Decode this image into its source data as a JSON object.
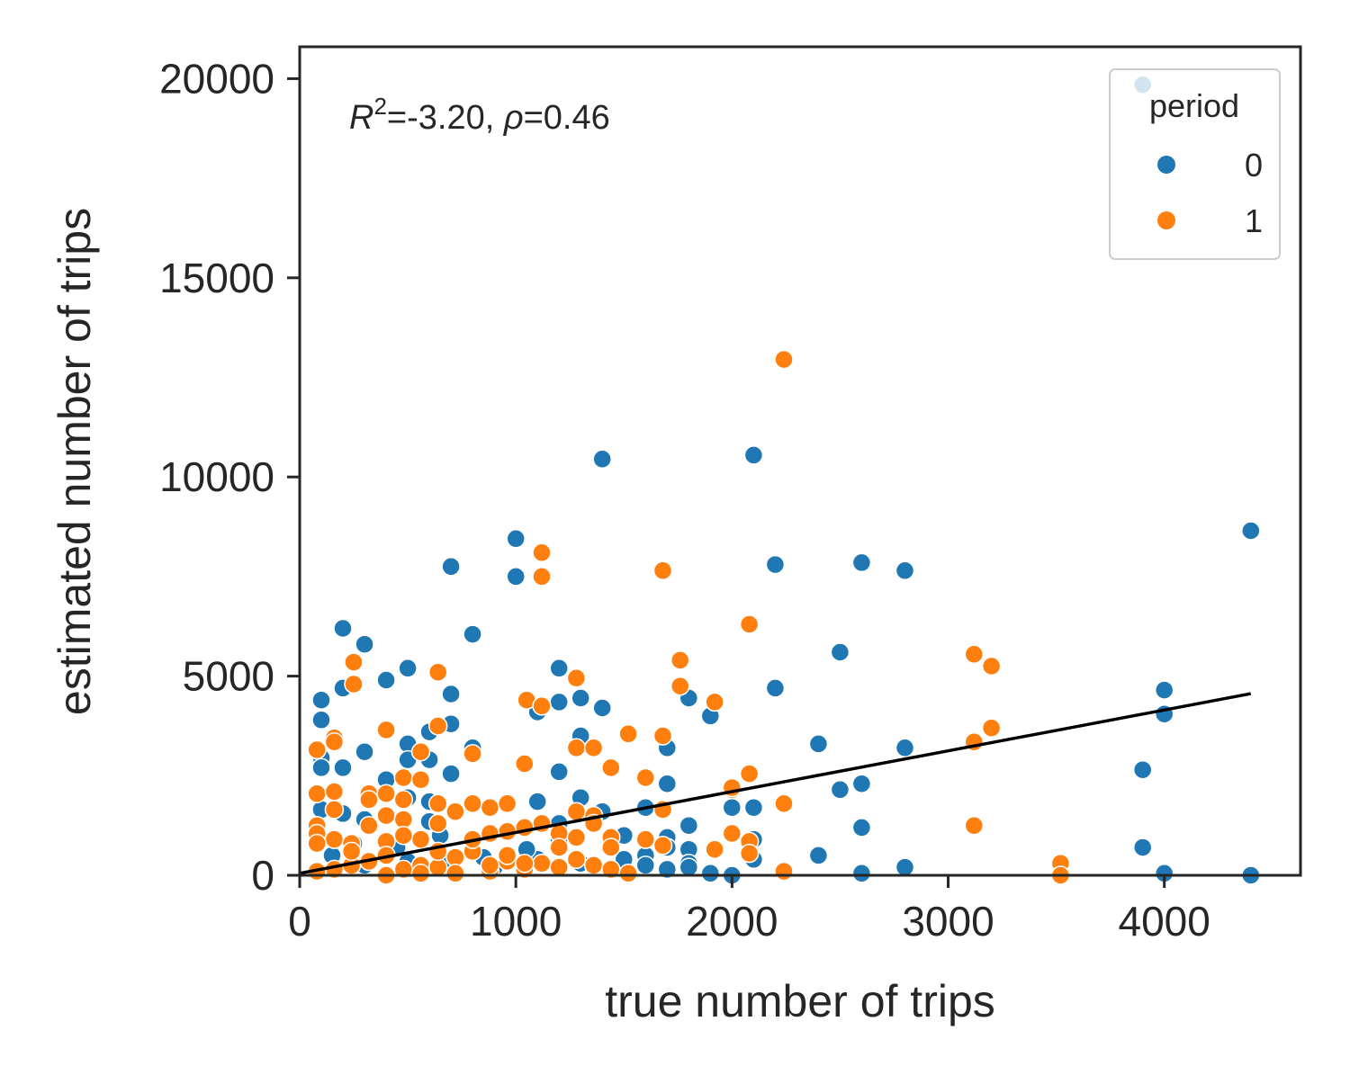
{
  "chart_data": {
    "type": "scatter",
    "xlabel": "true number of trips",
    "ylabel": "estimated number of trips",
    "annotation": {
      "r2_symbol": "R",
      "r2_exp": "2",
      "r2_value": "=-3.20, ",
      "rho_symbol": "ρ",
      "rho_value": "=0.46"
    },
    "xlim": [
      0,
      4630
    ],
    "ylim": [
      0,
      20800
    ],
    "xticks": [
      0,
      1000,
      2000,
      3000,
      4000
    ],
    "yticks": [
      0,
      5000,
      10000,
      15000,
      20000
    ],
    "grid": false,
    "legend": {
      "title": "period",
      "placement": "top-right",
      "entries": [
        {
          "label": "0",
          "color": "#1f77b4"
        },
        {
          "label": "1",
          "color": "#ff7f0e"
        }
      ]
    },
    "fit_line": {
      "x": [
        0,
        4400
      ],
      "y": [
        50,
        4560
      ],
      "color": "#000000"
    },
    "series": [
      {
        "name": "0",
        "color": "#1f77b4",
        "points": [
          [
            3900,
            19850
          ],
          [
            1400,
            10450
          ],
          [
            2100,
            10550
          ],
          [
            4400,
            8650
          ],
          [
            1000,
            8450
          ],
          [
            1000,
            7500
          ],
          [
            700,
            7750
          ],
          [
            2200,
            7800
          ],
          [
            2600,
            7850
          ],
          [
            2800,
            7650
          ],
          [
            200,
            6200
          ],
          [
            800,
            6050
          ],
          [
            300,
            5800
          ],
          [
            2500,
            5600
          ],
          [
            500,
            5200
          ],
          [
            1200,
            5200
          ],
          [
            400,
            4900
          ],
          [
            200,
            4700
          ],
          [
            2200,
            4700
          ],
          [
            700,
            4550
          ],
          [
            4000,
            4650
          ],
          [
            100,
            4400
          ],
          [
            1300,
            4450
          ],
          [
            1800,
            4450
          ],
          [
            1200,
            4350
          ],
          [
            1400,
            4200
          ],
          [
            1100,
            4100
          ],
          [
            1900,
            4000
          ],
          [
            4000,
            4050
          ],
          [
            100,
            3900
          ],
          [
            700,
            3800
          ],
          [
            600,
            3600
          ],
          [
            1300,
            3500
          ],
          [
            500,
            3300
          ],
          [
            2400,
            3300
          ],
          [
            300,
            3100
          ],
          [
            800,
            3200
          ],
          [
            1700,
            3200
          ],
          [
            2800,
            3200
          ],
          [
            100,
            2950
          ],
          [
            500,
            2900
          ],
          [
            600,
            2900
          ],
          [
            100,
            2700
          ],
          [
            200,
            2700
          ],
          [
            700,
            2550
          ],
          [
            1200,
            2600
          ],
          [
            3900,
            2650
          ],
          [
            1700,
            2300
          ],
          [
            2600,
            2300
          ],
          [
            2500,
            2150
          ],
          [
            400,
            2400
          ],
          [
            500,
            1950
          ],
          [
            1300,
            1950
          ],
          [
            600,
            1850
          ],
          [
            1100,
            1850
          ],
          [
            100,
            1650
          ],
          [
            200,
            1550
          ],
          [
            1600,
            1700
          ],
          [
            2000,
            1700
          ],
          [
            2100,
            1700
          ],
          [
            1400,
            1600
          ],
          [
            300,
            1400
          ],
          [
            600,
            1350
          ],
          [
            1200,
            1300
          ],
          [
            1800,
            1250
          ],
          [
            2600,
            1200
          ],
          [
            1500,
            1000
          ],
          [
            1200,
            900
          ],
          [
            1700,
            950
          ],
          [
            2100,
            900
          ],
          [
            800,
            850
          ],
          [
            1700,
            700
          ],
          [
            1800,
            650
          ],
          [
            3900,
            700
          ],
          [
            1600,
            500
          ],
          [
            2400,
            500
          ],
          [
            1800,
            300
          ],
          [
            2100,
            400
          ],
          [
            1700,
            150
          ],
          [
            1800,
            200
          ],
          [
            1900,
            50
          ],
          [
            2000,
            0
          ],
          [
            2600,
            50
          ],
          [
            2800,
            200
          ],
          [
            4000,
            50
          ],
          [
            4400,
            0
          ],
          [
            1600,
            250
          ],
          [
            1500,
            400
          ],
          [
            1300,
            300
          ],
          [
            1100,
            400
          ],
          [
            900,
            200
          ],
          [
            700,
            300
          ],
          [
            500,
            350
          ],
          [
            300,
            250
          ],
          [
            150,
            500
          ],
          [
            250,
            800
          ],
          [
            450,
            700
          ],
          [
            650,
            1000
          ],
          [
            850,
            450
          ],
          [
            1050,
            650
          ]
        ]
      },
      {
        "name": "1",
        "color": "#ff7f0e",
        "points": [
          [
            2240,
            12950
          ],
          [
            1120,
            8100
          ],
          [
            1120,
            7500
          ],
          [
            1680,
            7650
          ],
          [
            2080,
            6300
          ],
          [
            250,
            5350
          ],
          [
            1760,
            5400
          ],
          [
            3120,
            5550
          ],
          [
            3200,
            5250
          ],
          [
            640,
            5100
          ],
          [
            250,
            4800
          ],
          [
            1760,
            4750
          ],
          [
            1280,
            4950
          ],
          [
            1050,
            4400
          ],
          [
            1120,
            4250
          ],
          [
            1920,
            4350
          ],
          [
            400,
            3650
          ],
          [
            3200,
            3700
          ],
          [
            640,
            3750
          ],
          [
            1520,
            3550
          ],
          [
            1680,
            3500
          ],
          [
            160,
            3450
          ],
          [
            160,
            3350
          ],
          [
            3120,
            3350
          ],
          [
            80,
            3150
          ],
          [
            1280,
            3200
          ],
          [
            1360,
            3200
          ],
          [
            560,
            3100
          ],
          [
            800,
            3050
          ],
          [
            1040,
            2800
          ],
          [
            1440,
            2700
          ],
          [
            1600,
            2450
          ],
          [
            2080,
            2550
          ],
          [
            480,
            2450
          ],
          [
            560,
            2400
          ],
          [
            80,
            2050
          ],
          [
            160,
            2100
          ],
          [
            320,
            2050
          ],
          [
            320,
            1900
          ],
          [
            400,
            2050
          ],
          [
            480,
            1900
          ],
          [
            2000,
            2150
          ],
          [
            2000,
            2200
          ],
          [
            2240,
            1800
          ],
          [
            640,
            1800
          ],
          [
            800,
            1800
          ],
          [
            880,
            1700
          ],
          [
            960,
            1800
          ],
          [
            1280,
            1600
          ],
          [
            1360,
            1500
          ],
          [
            1680,
            1650
          ],
          [
            720,
            1600
          ],
          [
            160,
            1650
          ],
          [
            400,
            1500
          ],
          [
            480,
            1400
          ],
          [
            320,
            1250
          ],
          [
            640,
            1300
          ],
          [
            1120,
            1300
          ],
          [
            1040,
            1200
          ],
          [
            3120,
            1250
          ],
          [
            80,
            1250
          ],
          [
            80,
            1050
          ],
          [
            160,
            900
          ],
          [
            240,
            800
          ],
          [
            80,
            800
          ],
          [
            560,
            900
          ],
          [
            400,
            850
          ],
          [
            960,
            1100
          ],
          [
            880,
            1050
          ],
          [
            1200,
            1050
          ],
          [
            1280,
            950
          ],
          [
            1440,
            950
          ],
          [
            2000,
            1050
          ],
          [
            1920,
            650
          ],
          [
            2080,
            850
          ],
          [
            2080,
            550
          ],
          [
            1680,
            750
          ],
          [
            1440,
            700
          ],
          [
            800,
            600
          ],
          [
            720,
            450
          ],
          [
            400,
            500
          ],
          [
            320,
            350
          ],
          [
            240,
            250
          ],
          [
            160,
            150
          ],
          [
            80,
            100
          ],
          [
            480,
            150
          ],
          [
            560,
            250
          ],
          [
            640,
            200
          ],
          [
            880,
            100
          ],
          [
            960,
            350
          ],
          [
            1040,
            150
          ],
          [
            1120,
            300
          ],
          [
            1200,
            200
          ],
          [
            1360,
            250
          ],
          [
            1440,
            150
          ],
          [
            1520,
            50
          ],
          [
            2240,
            100
          ],
          [
            3520,
            300
          ],
          [
            3520,
            0
          ],
          [
            1280,
            400
          ],
          [
            1040,
            300
          ],
          [
            880,
            250
          ],
          [
            720,
            50
          ],
          [
            560,
            50
          ],
          [
            400,
            0
          ],
          [
            640,
            600
          ],
          [
            800,
            900
          ],
          [
            1200,
            700
          ],
          [
            1600,
            900
          ],
          [
            1360,
            1300
          ],
          [
            480,
            1000
          ],
          [
            240,
            600
          ],
          [
            960,
            500
          ]
        ]
      }
    ]
  }
}
